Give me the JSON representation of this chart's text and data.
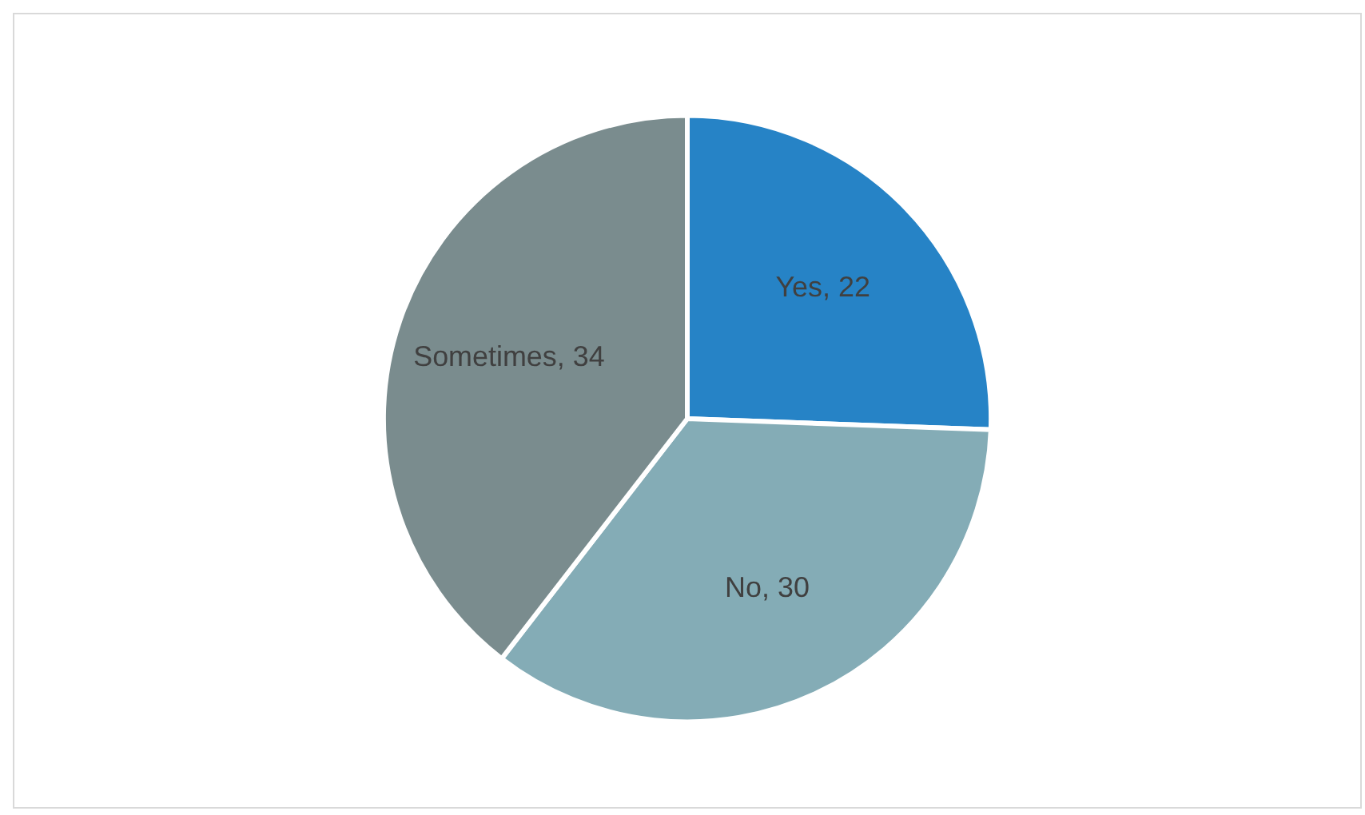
{
  "chart_data": {
    "type": "pie",
    "categories": [
      "Yes",
      "No",
      "Sometimes"
    ],
    "values": [
      22,
      30,
      34
    ],
    "colors": [
      "#2683c6",
      "#84acb6",
      "#7a8c8e"
    ],
    "value_labels": [
      ", 22",
      ", 30",
      ", 34"
    ],
    "legend": false
  }
}
